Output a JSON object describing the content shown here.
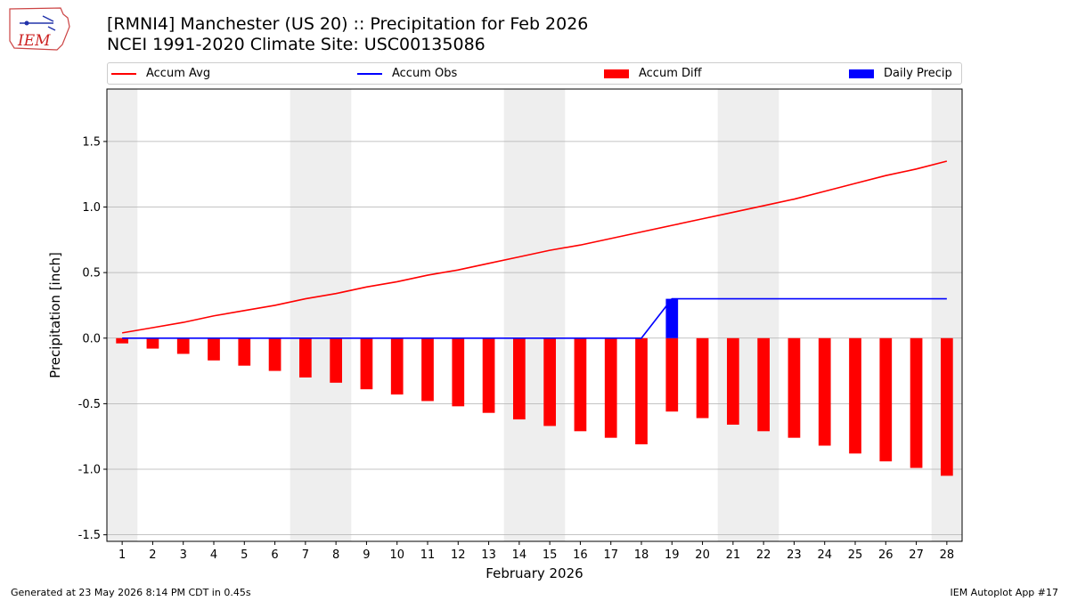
{
  "title_line1": "[RMNI4] Manchester (US 20) :: Precipitation for Feb 2026",
  "title_line2": "NCEI 1991-2020 Climate Site: USC00135086",
  "logo_text": "IEM",
  "footer_left": "Generated at 23 May 2026 8:14 PM CDT in 0.45s",
  "footer_right": "IEM Autoplot App #17",
  "legend": [
    {
      "label": "Accum Avg",
      "kind": "line",
      "color": "#ff0000"
    },
    {
      "label": "Accum Obs",
      "kind": "line",
      "color": "#0000ff"
    },
    {
      "label": "Accum Diff",
      "kind": "rect",
      "color": "#ff0000"
    },
    {
      "label": "Daily Precip",
      "kind": "rect",
      "color": "#0000ff"
    }
  ],
  "chart_data": {
    "type": "bar",
    "xlabel": "February 2026",
    "ylabel": "Precipitation [inch]",
    "xlim": [
      0.5,
      28.5
    ],
    "ylim": [
      -1.55,
      1.9
    ],
    "yticks": [
      -1.5,
      -1.0,
      -0.5,
      0.0,
      0.5,
      1.0,
      1.5
    ],
    "grid": "y",
    "weekend_shading": [
      [
        0.5,
        1.5
      ],
      [
        6.5,
        8.5
      ],
      [
        13.5,
        15.5
      ],
      [
        20.5,
        22.5
      ],
      [
        27.5,
        28.5
      ]
    ],
    "x": [
      1,
      2,
      3,
      4,
      5,
      6,
      7,
      8,
      9,
      10,
      11,
      12,
      13,
      14,
      15,
      16,
      17,
      18,
      19,
      20,
      21,
      22,
      23,
      24,
      25,
      26,
      27,
      28
    ],
    "series": [
      {
        "name": "Accum Avg",
        "type": "line",
        "color": "#ff0000",
        "values": [
          0.04,
          0.08,
          0.12,
          0.17,
          0.21,
          0.25,
          0.3,
          0.34,
          0.39,
          0.43,
          0.48,
          0.52,
          0.57,
          0.62,
          0.67,
          0.71,
          0.76,
          0.81,
          0.86,
          0.91,
          0.96,
          1.01,
          1.06,
          1.12,
          1.18,
          1.24,
          1.29,
          1.35
        ]
      },
      {
        "name": "Accum Obs",
        "type": "line",
        "color": "#0000ff",
        "values": [
          0,
          0,
          0,
          0,
          0,
          0,
          0,
          0,
          0,
          0,
          0,
          0,
          0,
          0,
          0,
          0,
          0,
          0,
          0.3,
          0.3,
          0.3,
          0.3,
          0.3,
          0.3,
          0.3,
          0.3,
          0.3,
          0.3
        ]
      },
      {
        "name": "Accum Diff",
        "type": "bar",
        "color": "#ff0000",
        "values": [
          -0.04,
          -0.08,
          -0.12,
          -0.17,
          -0.21,
          -0.25,
          -0.3,
          -0.34,
          -0.39,
          -0.43,
          -0.48,
          -0.52,
          -0.57,
          -0.62,
          -0.67,
          -0.71,
          -0.76,
          -0.81,
          -0.56,
          -0.61,
          -0.66,
          -0.71,
          -0.76,
          -0.82,
          -0.88,
          -0.94,
          -0.99,
          -1.05
        ]
      },
      {
        "name": "Daily Precip",
        "type": "bar",
        "color": "#0000ff",
        "values": [
          0,
          0,
          0,
          0,
          0,
          0,
          0,
          0,
          0,
          0,
          0,
          0,
          0,
          0,
          0,
          0,
          0,
          0,
          0.3,
          0,
          0,
          0,
          0,
          0,
          0,
          0,
          0,
          0
        ]
      }
    ]
  }
}
